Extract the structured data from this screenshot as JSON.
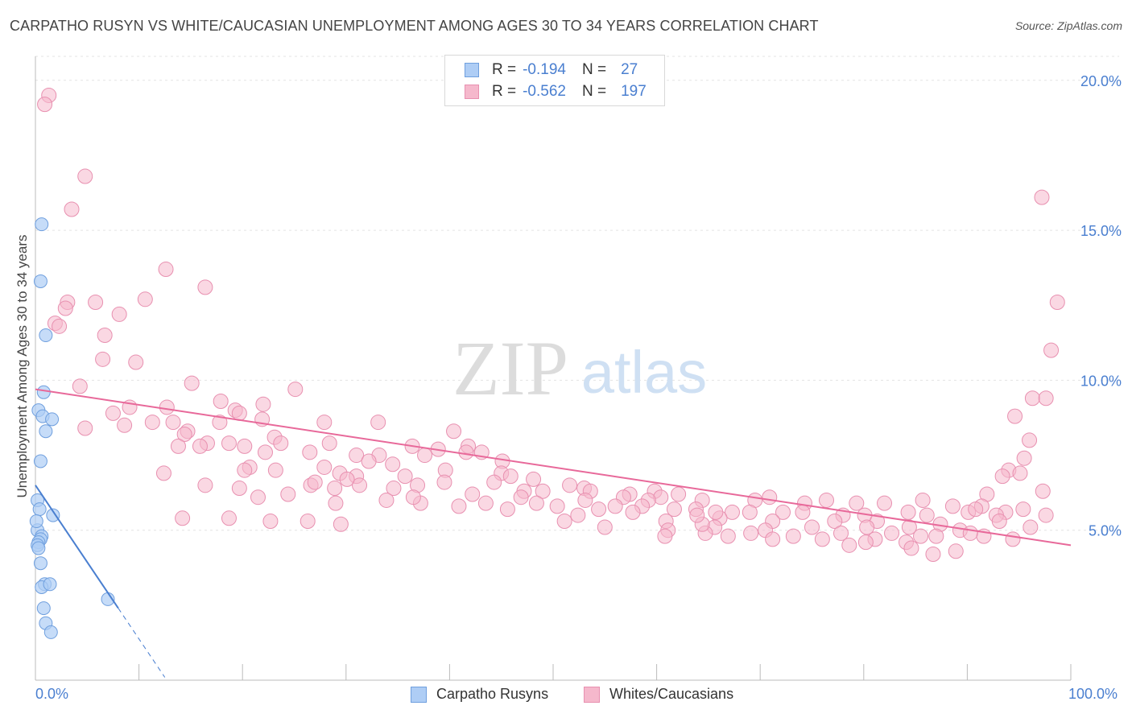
{
  "title": "CARPATHO RUSYN VS WHITE/CAUCASIAN UNEMPLOYMENT AMONG AGES 30 TO 34 YEARS CORRELATION CHART",
  "source": "Source: ZipAtlas.com",
  "watermark": {
    "zip": "ZIP",
    "atlas": "atlas"
  },
  "legend": {
    "rows": [
      {
        "r_label": "R =",
        "r_value": "-0.194",
        "n_label": "N =",
        "n_value": "27"
      },
      {
        "r_label": "R =",
        "r_value": "-0.562",
        "n_label": "N =",
        "n_value": "197"
      }
    ]
  },
  "bottom_legend": {
    "series1": "Carpatho Rusyns",
    "series2": "Whites/Caucasians"
  },
  "x_ticks": {
    "left": "0.0%",
    "right": "100.0%"
  },
  "colors": {
    "blue": "#4a7fd0",
    "blue_fill": "#aecdf5",
    "pink": "#e8699a",
    "pink_fill": "#f5b8cc",
    "grid": "#e3e3e3"
  },
  "chart_data": {
    "type": "scatter",
    "title": "CARPATHO RUSYN VS WHITE/CAUCASIAN UNEMPLOYMENT AMONG AGES 30 TO 34 YEARS CORRELATION CHART",
    "xlabel": "",
    "ylabel": "Unemployment Among Ages 30 to 34 years",
    "xlim": [
      0,
      100
    ],
    "ylim": [
      0,
      20.8
    ],
    "y_ticks": [
      5,
      10,
      15,
      20
    ],
    "y_tick_labels": [
      "5.0%",
      "10.0%",
      "15.0%",
      "20.0%"
    ],
    "series": [
      {
        "name": "Carpatho Rusyns",
        "r": -0.194,
        "n": 27,
        "trend": {
          "x0": 0.0,
          "y0": 6.5,
          "x1": 8.0,
          "y1": 2.4,
          "dash_to_x": 12.5
        },
        "points": [
          [
            0.6,
            15.2
          ],
          [
            0.5,
            13.3
          ],
          [
            1.0,
            11.5
          ],
          [
            0.8,
            9.6
          ],
          [
            0.3,
            9.0
          ],
          [
            0.7,
            8.8
          ],
          [
            1.6,
            8.7
          ],
          [
            1.0,
            8.3
          ],
          [
            0.5,
            7.3
          ],
          [
            0.2,
            6.0
          ],
          [
            0.4,
            5.7
          ],
          [
            1.7,
            5.5
          ],
          [
            0.2,
            5.0
          ],
          [
            0.6,
            4.8
          ],
          [
            0.5,
            4.7
          ],
          [
            0.3,
            4.6
          ],
          [
            0.2,
            4.5
          ],
          [
            0.3,
            4.4
          ],
          [
            0.5,
            3.9
          ],
          [
            0.9,
            3.2
          ],
          [
            0.6,
            3.1
          ],
          [
            1.4,
            3.2
          ],
          [
            0.8,
            2.4
          ],
          [
            7.0,
            2.7
          ],
          [
            1.0,
            1.9
          ],
          [
            1.5,
            1.6
          ],
          [
            0.1,
            5.3
          ]
        ]
      },
      {
        "name": "Whites/Caucasians",
        "r": -0.562,
        "n": 197,
        "trend": {
          "x0": 0.0,
          "y0": 9.7,
          "x1": 100.0,
          "y1": 4.5
        },
        "points": [
          [
            1.3,
            19.5
          ],
          [
            0.9,
            19.2
          ],
          [
            4.8,
            16.8
          ],
          [
            3.5,
            15.7
          ],
          [
            12.6,
            13.7
          ],
          [
            16.4,
            13.1
          ],
          [
            3.1,
            12.6
          ],
          [
            5.8,
            12.6
          ],
          [
            10.6,
            12.7
          ],
          [
            2.9,
            12.4
          ],
          [
            8.1,
            12.2
          ],
          [
            1.9,
            11.9
          ],
          [
            2.3,
            11.8
          ],
          [
            6.7,
            11.5
          ],
          [
            6.5,
            10.7
          ],
          [
            9.7,
            10.6
          ],
          [
            15.1,
            9.9
          ],
          [
            4.3,
            9.8
          ],
          [
            25.1,
            9.7
          ],
          [
            17.9,
            9.3
          ],
          [
            22.0,
            9.2
          ],
          [
            12.7,
            9.1
          ],
          [
            9.1,
            9.1
          ],
          [
            19.3,
            9.0
          ],
          [
            19.7,
            8.9
          ],
          [
            7.5,
            8.9
          ],
          [
            21.9,
            8.7
          ],
          [
            17.8,
            8.6
          ],
          [
            13.3,
            8.6
          ],
          [
            11.3,
            8.6
          ],
          [
            8.6,
            8.5
          ],
          [
            4.8,
            8.4
          ],
          [
            27.9,
            8.6
          ],
          [
            33.1,
            8.6
          ],
          [
            40.4,
            8.3
          ],
          [
            14.7,
            8.3
          ],
          [
            14.4,
            8.2
          ],
          [
            23.1,
            8.1
          ],
          [
            23.7,
            7.9
          ],
          [
            18.7,
            7.9
          ],
          [
            16.6,
            7.9
          ],
          [
            13.8,
            7.8
          ],
          [
            15.9,
            7.8
          ],
          [
            20.2,
            7.8
          ],
          [
            28.4,
            7.9
          ],
          [
            36.4,
            7.8
          ],
          [
            41.8,
            7.8
          ],
          [
            22.2,
            7.6
          ],
          [
            26.5,
            7.6
          ],
          [
            31.0,
            7.5
          ],
          [
            33.2,
            7.5
          ],
          [
            38.9,
            7.7
          ],
          [
            43.1,
            7.6
          ],
          [
            37.6,
            7.5
          ],
          [
            41.6,
            7.6
          ],
          [
            32.2,
            7.3
          ],
          [
            45.1,
            7.3
          ],
          [
            34.5,
            7.2
          ],
          [
            20.7,
            7.1
          ],
          [
            27.9,
            7.1
          ],
          [
            29.4,
            6.9
          ],
          [
            20.2,
            7.0
          ],
          [
            23.2,
            7.0
          ],
          [
            39.6,
            7.0
          ],
          [
            45.0,
            6.9
          ],
          [
            12.4,
            6.9
          ],
          [
            35.7,
            6.8
          ],
          [
            31.0,
            6.8
          ],
          [
            45.9,
            6.8
          ],
          [
            48.1,
            6.7
          ],
          [
            44.3,
            6.6
          ],
          [
            26.6,
            6.5
          ],
          [
            28.9,
            6.4
          ],
          [
            36.9,
            6.5
          ],
          [
            39.5,
            6.6
          ],
          [
            34.6,
            6.4
          ],
          [
            31.3,
            6.5
          ],
          [
            51.6,
            6.5
          ],
          [
            53.0,
            6.4
          ],
          [
            47.2,
            6.3
          ],
          [
            49.0,
            6.3
          ],
          [
            53.6,
            6.3
          ],
          [
            59.8,
            6.3
          ],
          [
            57.4,
            6.2
          ],
          [
            62.1,
            6.2
          ],
          [
            56.8,
            6.1
          ],
          [
            60.4,
            6.1
          ],
          [
            70.9,
            6.1
          ],
          [
            76.4,
            6.0
          ],
          [
            82.0,
            5.9
          ],
          [
            85.7,
            6.0
          ],
          [
            91.9,
            6.2
          ],
          [
            97.3,
            6.3
          ],
          [
            42.2,
            6.2
          ],
          [
            46.9,
            6.1
          ],
          [
            53.1,
            6.0
          ],
          [
            59.2,
            6.0
          ],
          [
            64.4,
            6.0
          ],
          [
            69.5,
            6.0
          ],
          [
            74.3,
            5.9
          ],
          [
            79.3,
            5.9
          ],
          [
            88.6,
            5.8
          ],
          [
            91.4,
            5.8
          ],
          [
            95.4,
            5.7
          ],
          [
            50.4,
            5.8
          ],
          [
            56.0,
            5.8
          ],
          [
            61.7,
            5.7
          ],
          [
            67.3,
            5.6
          ],
          [
            72.2,
            5.6
          ],
          [
            78.0,
            5.5
          ],
          [
            84.3,
            5.6
          ],
          [
            90.1,
            5.6
          ],
          [
            93.7,
            5.6
          ],
          [
            97.6,
            5.5
          ],
          [
            48.4,
            5.9
          ],
          [
            54.4,
            5.7
          ],
          [
            58.6,
            5.8
          ],
          [
            63.8,
            5.7
          ],
          [
            69.0,
            5.6
          ],
          [
            74.1,
            5.6
          ],
          [
            80.1,
            5.5
          ],
          [
            86.1,
            5.5
          ],
          [
            92.8,
            5.5
          ],
          [
            45.6,
            5.7
          ],
          [
            40.9,
            5.8
          ],
          [
            37.2,
            5.9
          ],
          [
            33.9,
            6.0
          ],
          [
            29.0,
            5.9
          ],
          [
            24.4,
            6.2
          ],
          [
            21.5,
            6.1
          ],
          [
            16.4,
            6.5
          ],
          [
            19.7,
            6.4
          ],
          [
            27.0,
            6.6
          ],
          [
            30.1,
            6.7
          ],
          [
            36.5,
            6.1
          ],
          [
            43.5,
            5.9
          ],
          [
            52.4,
            5.5
          ],
          [
            57.7,
            5.6
          ],
          [
            60.9,
            5.3
          ],
          [
            66.1,
            5.4
          ],
          [
            71.2,
            5.3
          ],
          [
            77.2,
            5.3
          ],
          [
            81.3,
            5.3
          ],
          [
            87.4,
            5.2
          ],
          [
            93.1,
            5.3
          ],
          [
            96.1,
            5.1
          ],
          [
            51.1,
            5.3
          ],
          [
            55.0,
            5.1
          ],
          [
            61.1,
            5.0
          ],
          [
            65.6,
            5.1
          ],
          [
            70.5,
            5.0
          ],
          [
            75.0,
            5.1
          ],
          [
            80.3,
            5.1
          ],
          [
            84.4,
            5.1
          ],
          [
            89.3,
            5.0
          ],
          [
            64.7,
            4.9
          ],
          [
            69.1,
            4.9
          ],
          [
            73.2,
            4.8
          ],
          [
            77.8,
            4.9
          ],
          [
            82.7,
            4.9
          ],
          [
            87.0,
            4.8
          ],
          [
            91.6,
            4.8
          ],
          [
            60.8,
            4.8
          ],
          [
            66.9,
            4.8
          ],
          [
            71.2,
            4.7
          ],
          [
            76.0,
            4.7
          ],
          [
            81.1,
            4.7
          ],
          [
            85.5,
            4.8
          ],
          [
            90.3,
            4.9
          ],
          [
            94.4,
            4.7
          ],
          [
            78.6,
            4.5
          ],
          [
            80.2,
            4.6
          ],
          [
            84.1,
            4.6
          ],
          [
            88.9,
            4.3
          ],
          [
            86.7,
            4.2
          ],
          [
            84.6,
            4.4
          ],
          [
            29.5,
            5.2
          ],
          [
            14.2,
            5.4
          ],
          [
            18.7,
            5.4
          ],
          [
            22.7,
            5.3
          ],
          [
            26.3,
            5.3
          ],
          [
            64.4,
            5.2
          ],
          [
            97.2,
            16.1
          ],
          [
            98.7,
            12.6
          ],
          [
            98.1,
            11.0
          ],
          [
            96.3,
            9.4
          ],
          [
            97.6,
            9.4
          ],
          [
            94.6,
            8.8
          ],
          [
            96.0,
            8.0
          ],
          [
            95.5,
            7.4
          ],
          [
            94.0,
            7.0
          ],
          [
            93.4,
            6.8
          ],
          [
            95.1,
            6.9
          ],
          [
            90.8,
            5.7
          ],
          [
            63.9,
            5.5
          ],
          [
            65.7,
            5.6
          ]
        ]
      }
    ]
  }
}
